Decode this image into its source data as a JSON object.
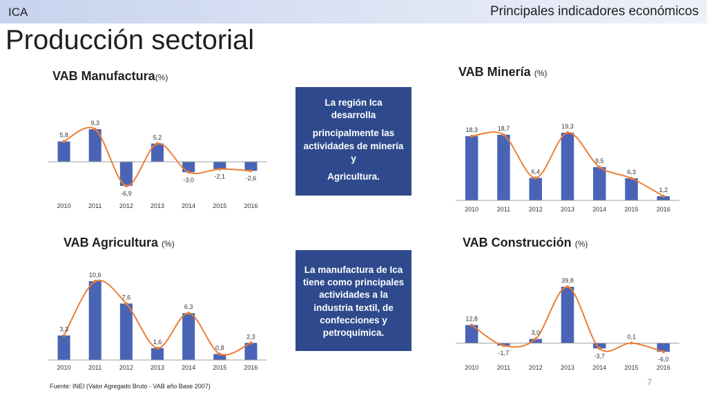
{
  "header": {
    "tag": "ICA",
    "headline": "Principales indicadores económicos"
  },
  "page": {
    "title": "Producción sectorial",
    "number": "7"
  },
  "source": "Fuente: INEI (Valor Agregado Bruto - VAB año Base 2007)",
  "notes": {
    "mineria": [
      "La región Ica desarrolla",
      "principalmente las actividades de minería y",
      "Agricultura."
    ],
    "manufactura": [
      "La manufactura de Ica tiene como principales actividades a la industria textil, de confecciones y petroquímica."
    ]
  },
  "colors": {
    "bar": "#4a64b5",
    "line": "#ed7d31",
    "note_bg": "#2e4a8c",
    "header_bg": "#d9e1f3"
  },
  "chart_data": [
    {
      "id": "manufactura",
      "type": "bar",
      "title": "VAB Manufactura",
      "unit": "(%)",
      "categories": [
        "2010",
        "2011",
        "2012",
        "2013",
        "2014",
        "2015",
        "2016"
      ],
      "values": [
        5.8,
        9.3,
        -6.9,
        5.2,
        -3.0,
        -2.1,
        -2.6
      ],
      "labels": [
        "5,8",
        "9,3",
        "-6,9",
        "5,2",
        "-3,0",
        "-2,1",
        "-2,6"
      ],
      "overlay": "smoothed line"
    },
    {
      "id": "mineria",
      "type": "bar",
      "title": "VAB Minería",
      "unit": "(%)",
      "categories": [
        "2010",
        "2011",
        "2012",
        "2013",
        "2014",
        "2015",
        "2016"
      ],
      "values": [
        18.3,
        18.7,
        6.4,
        19.3,
        9.5,
        6.3,
        1.2
      ],
      "labels": [
        "18,3",
        "18,7",
        "6,4",
        "19,3",
        "9,5",
        "6,3",
        "1,2"
      ],
      "overlay": "smoothed line"
    },
    {
      "id": "agricultura",
      "type": "bar",
      "title": "VAB Agricultura",
      "unit": "(%)",
      "categories": [
        "2010",
        "2011",
        "2012",
        "2013",
        "2014",
        "2015",
        "2016"
      ],
      "values": [
        3.3,
        10.6,
        7.6,
        1.6,
        6.3,
        0.8,
        2.3
      ],
      "labels": [
        "3,3",
        "10,6",
        "7,6",
        "1,6",
        "6,3",
        "0,8",
        "2,3"
      ],
      "overlay": "smoothed line"
    },
    {
      "id": "construccion",
      "type": "bar",
      "title": "VAB Construcción",
      "unit": "(%)",
      "categories": [
        "2010",
        "2011",
        "2012",
        "2013",
        "2014",
        "2015",
        "2016"
      ],
      "values": [
        12.8,
        -1.7,
        3.0,
        39.8,
        -3.7,
        0.1,
        -6.0
      ],
      "labels": [
        "12,8",
        "-1,7",
        "3,0",
        "39,8",
        "-3,7",
        "0,1",
        "-6,0"
      ],
      "overlay": "smoothed line"
    }
  ]
}
